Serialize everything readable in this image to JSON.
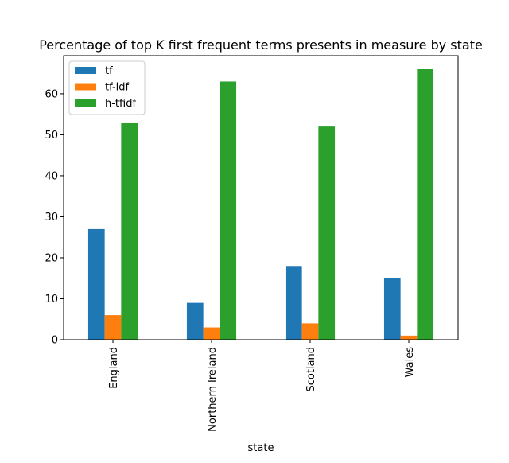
{
  "chart_data": {
    "type": "bar",
    "title": "Percentage of top K first frequent terms presents in measure by state",
    "xlabel": "state",
    "ylabel": "",
    "categories": [
      "England",
      "Northern Ireland",
      "Scotland",
      "Wales"
    ],
    "series": [
      {
        "name": "tf",
        "values": [
          27,
          9,
          18,
          15
        ],
        "color": "#1f77b4"
      },
      {
        "name": "tf-idf",
        "values": [
          6,
          3,
          4,
          1
        ],
        "color": "#ff7f0e"
      },
      {
        "name": "h-tfidf",
        "values": [
          53,
          63,
          52,
          66
        ],
        "color": "#2ca02c"
      }
    ],
    "ylim": [
      0,
      69.3
    ],
    "yticks": [
      0,
      10,
      20,
      30,
      40,
      50,
      60
    ],
    "legend_position": "upper-left",
    "grid": false
  }
}
